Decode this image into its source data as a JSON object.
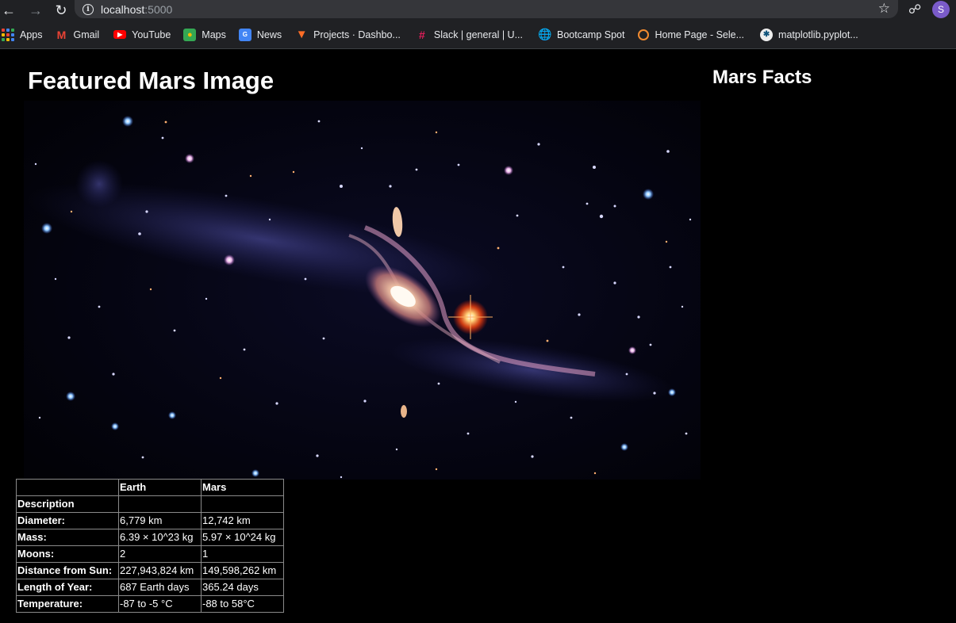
{
  "browser": {
    "url_host": "localhost",
    "url_port": ":5000",
    "profile_initial": "S"
  },
  "bookmarks": [
    {
      "label": "Apps",
      "icon": "apps-grid-icon"
    },
    {
      "label": "Gmail",
      "icon": "gmail-icon"
    },
    {
      "label": "YouTube",
      "icon": "youtube-icon"
    },
    {
      "label": "Maps",
      "icon": "maps-icon"
    },
    {
      "label": "News",
      "icon": "news-icon"
    },
    {
      "label": "Projects · Dashbo...",
      "icon": "gitlab-icon"
    },
    {
      "label": "Slack | general | U...",
      "icon": "slack-icon"
    },
    {
      "label": "Bootcamp Spot",
      "icon": "globe-icon"
    },
    {
      "label": "Home Page - Sele...",
      "icon": "selenium-icon"
    },
    {
      "label": "matplotlib.pyplot...",
      "icon": "matplotlib-icon"
    }
  ],
  "page": {
    "featured_heading": "Featured Mars Image",
    "facts_heading": "Mars Facts"
  },
  "facts_table": {
    "headers": [
      "",
      "Earth",
      "Mars"
    ],
    "rows": [
      {
        "label": "Description",
        "earth": "",
        "mars": ""
      },
      {
        "label": "Diameter:",
        "earth": "6,779 km",
        "mars": "12,742 km"
      },
      {
        "label": "Mass:",
        "earth": "6.39 × 10^23 kg",
        "mars": "5.97 × 10^24 kg"
      },
      {
        "label": "Moons:",
        "earth": "2",
        "mars": "1"
      },
      {
        "label": "Distance from Sun:",
        "earth": "227,943,824 km",
        "mars": "149,598,262 km"
      },
      {
        "label": "Length of Year:",
        "earth": "687 Earth days",
        "mars": "365.24 days"
      },
      {
        "label": "Temperature:",
        "earth": "-87 to -5 °C",
        "mars": "-88 to 58°C"
      }
    ]
  }
}
